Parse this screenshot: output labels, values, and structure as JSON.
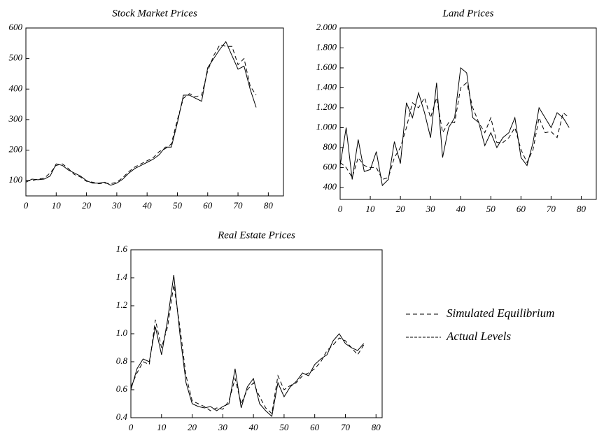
{
  "chart_data": [
    {
      "type": "line",
      "title": "Stock Market Prices",
      "x": [
        0,
        2,
        4,
        6,
        8,
        10,
        12,
        14,
        16,
        18,
        20,
        22,
        24,
        26,
        28,
        30,
        32,
        34,
        36,
        38,
        40,
        42,
        44,
        46,
        48,
        50,
        52,
        54,
        56,
        58,
        60,
        62,
        64,
        66,
        68,
        70,
        72,
        74,
        76
      ],
      "series": [
        {
          "color": "#000000",
          "dash": false,
          "values": [
            95,
            105,
            103,
            105,
            115,
            155,
            150,
            135,
            125,
            115,
            100,
            92,
            92,
            95,
            85,
            92,
            105,
            125,
            140,
            150,
            160,
            170,
            185,
            210,
            210,
            290,
            380,
            380,
            370,
            360,
            470,
            500,
            530,
            555,
            510,
            465,
            475,
            400,
            340
          ]
        },
        {
          "color": "#000000",
          "dash": true,
          "values": [
            100,
            100,
            105,
            108,
            125,
            150,
            155,
            140,
            120,
            112,
            98,
            95,
            90,
            92,
            90,
            95,
            110,
            130,
            145,
            155,
            165,
            175,
            195,
            205,
            220,
            300,
            370,
            385,
            375,
            380,
            460,
            510,
            545,
            540,
            540,
            480,
            500,
            410,
            380
          ]
        }
      ],
      "xlim": [
        0,
        85
      ],
      "xticks": [
        0,
        10,
        20,
        30,
        40,
        50,
        60,
        70,
        80
      ],
      "ylim": [
        50,
        600
      ],
      "yticks": [
        100,
        200,
        300,
        400,
        500,
        600
      ]
    },
    {
      "type": "line",
      "title": "Land Prices",
      "x": [
        0,
        2,
        4,
        6,
        8,
        10,
        12,
        14,
        16,
        18,
        20,
        22,
        24,
        26,
        28,
        30,
        32,
        34,
        36,
        38,
        40,
        42,
        44,
        46,
        48,
        50,
        52,
        54,
        56,
        58,
        60,
        62,
        64,
        66,
        68,
        70,
        72,
        74,
        76
      ],
      "series": [
        {
          "color": "#000000",
          "dash": false,
          "values": [
            620,
            1000,
            480,
            880,
            560,
            580,
            760,
            420,
            480,
            860,
            640,
            1250,
            1100,
            1350,
            1150,
            900,
            1450,
            700,
            1000,
            1100,
            1600,
            1550,
            1100,
            1050,
            820,
            950,
            800,
            900,
            950,
            1100,
            700,
            620,
            850,
            1200,
            1100,
            1000,
            1150,
            1100,
            1000
          ]
        },
        {
          "color": "#000000",
          "dash": true,
          "values": [
            650,
            600,
            500,
            700,
            620,
            600,
            600,
            480,
            500,
            700,
            800,
            1000,
            1250,
            1200,
            1300,
            1100,
            1300,
            950,
            1050,
            1050,
            1400,
            1450,
            1200,
            1050,
            950,
            1100,
            850,
            850,
            900,
            1000,
            780,
            650,
            780,
            1100,
            950,
            960,
            900,
            1150,
            1100
          ]
        }
      ],
      "xlim": [
        0,
        85
      ],
      "xticks": [
        0,
        10,
        20,
        30,
        40,
        50,
        60,
        70,
        80
      ],
      "ylim": [
        280,
        2000
      ],
      "yticks": [
        400,
        600,
        800,
        {
          "value": 1000,
          "label": "1.000"
        },
        {
          "value": 1200,
          "label": "1.200"
        },
        {
          "value": 1400,
          "label": "1.400"
        },
        {
          "value": 1600,
          "label": "1.600"
        },
        {
          "value": 1800,
          "label": "1.800"
        },
        {
          "value": 2000,
          "label": "2.000"
        }
      ]
    },
    {
      "type": "line",
      "title": "Real Estate Prices",
      "x": [
        0,
        2,
        4,
        6,
        8,
        10,
        12,
        14,
        16,
        18,
        20,
        22,
        24,
        26,
        28,
        30,
        32,
        34,
        36,
        38,
        40,
        42,
        44,
        46,
        48,
        50,
        52,
        54,
        56,
        58,
        60,
        62,
        64,
        66,
        68,
        70,
        72,
        74,
        76
      ],
      "series": [
        {
          "name": "Simulated Equilibrium",
          "color": "#000000",
          "dash": true,
          "values": [
            0.62,
            0.72,
            0.8,
            0.78,
            1.1,
            0.9,
            1.05,
            1.35,
            1.05,
            0.7,
            0.52,
            0.5,
            0.48,
            0.45,
            0.47,
            0.46,
            0.52,
            0.68,
            0.5,
            0.6,
            0.65,
            0.55,
            0.47,
            0.43,
            0.7,
            0.6,
            0.63,
            0.65,
            0.7,
            0.72,
            0.75,
            0.8,
            0.88,
            0.92,
            0.97,
            0.95,
            0.9,
            0.85,
            0.92
          ]
        },
        {
          "name": "Actual Levels",
          "color": "#000000",
          "dash": false,
          "values": [
            0.6,
            0.75,
            0.82,
            0.8,
            1.05,
            0.85,
            1.1,
            1.42,
            1.0,
            0.65,
            0.5,
            0.48,
            0.47,
            0.48,
            0.45,
            0.48,
            0.5,
            0.75,
            0.47,
            0.62,
            0.68,
            0.5,
            0.45,
            0.41,
            0.65,
            0.55,
            0.62,
            0.66,
            0.72,
            0.7,
            0.78,
            0.82,
            0.85,
            0.95,
            1.0,
            0.93,
            0.9,
            0.88,
            0.93
          ]
        }
      ],
      "xlim": [
        0,
        82
      ],
      "xticks": [
        0,
        10,
        20,
        30,
        40,
        50,
        60,
        70,
        80
      ],
      "ylim": [
        0.4,
        1.6
      ],
      "yticks": [
        0.4,
        0.6,
        0.8,
        {
          "value": 1,
          "label": "1.0"
        },
        1.2,
        1.4,
        1.6
      ]
    }
  ]
}
